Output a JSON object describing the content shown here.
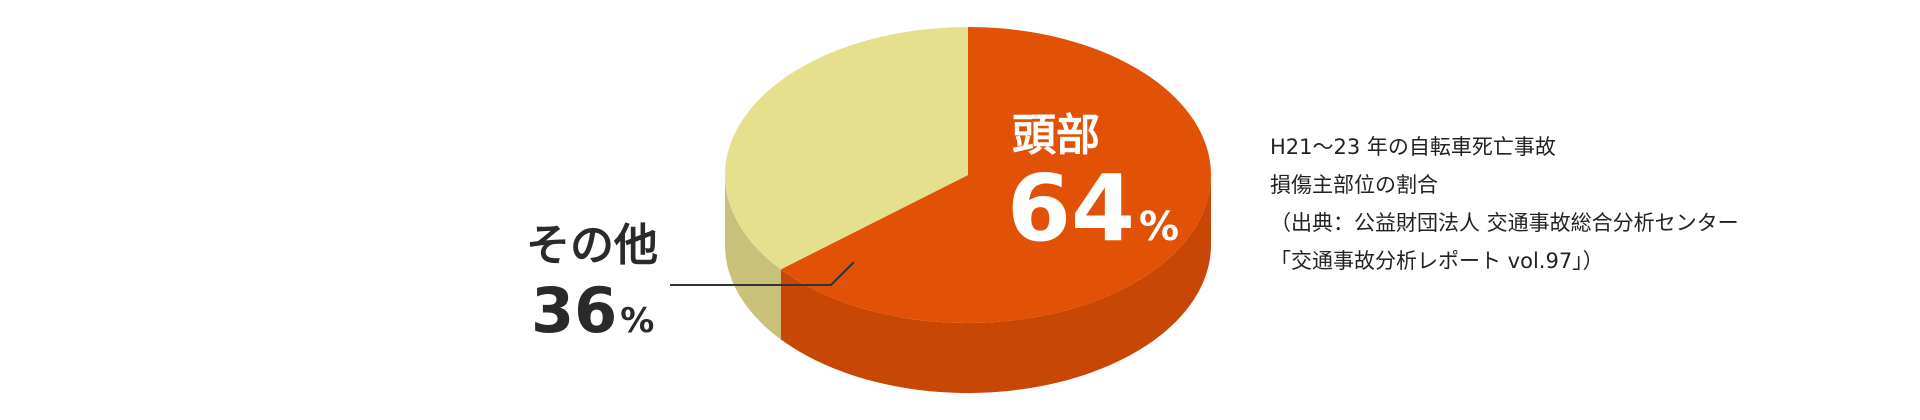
{
  "chart_data": {
    "type": "pie",
    "style": "3d",
    "slices": [
      {
        "label": "頭部",
        "value": 64,
        "unit": "%",
        "color": "#e25206",
        "side_color": "#c84704",
        "label_color": "#ffffff"
      },
      {
        "label": "その他",
        "value": 36,
        "unit": "%",
        "color": "#e6df8e",
        "side_color": "#c9c07a",
        "label_color": "#2a2a2a"
      }
    ]
  },
  "source_note": {
    "lines": [
      "H21～23 年の自転車死亡事故",
      "損傷主部位の割合",
      "（出典：公益財団法人 交通事故総合分析センター",
      "「交通事故分析レポート vol.97」）"
    ]
  }
}
